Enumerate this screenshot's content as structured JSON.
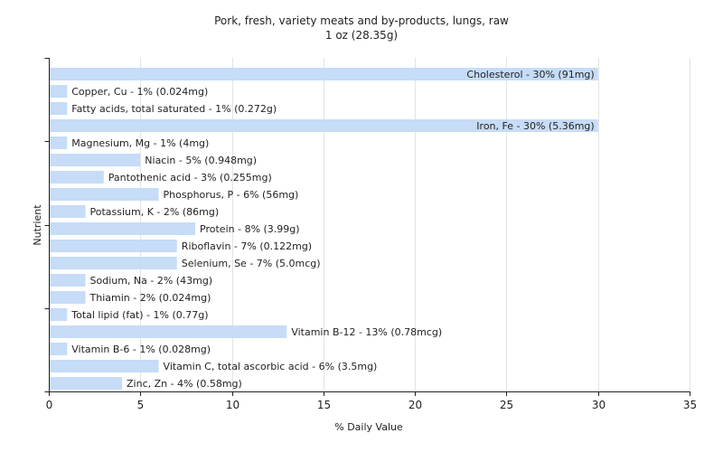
{
  "chart_data": {
    "type": "bar",
    "orientation": "horizontal",
    "title": "Pork, fresh, variety meats and by-products, lungs, raw",
    "subtitle": "1 oz (28.35g)",
    "xlabel": "% Daily Value",
    "ylabel": "Nutrient",
    "xlim": [
      0,
      35
    ],
    "xticks": [
      0,
      5,
      10,
      15,
      20,
      25,
      30,
      35
    ],
    "grid": true,
    "colors": {
      "bar": "#c6dcf7",
      "grid": "#e3e3e3",
      "axis": "#222222"
    },
    "categories": [
      "Cholesterol",
      "Copper, Cu",
      "Fatty acids, total saturated",
      "Iron, Fe",
      "Magnesium, Mg",
      "Niacin",
      "Pantothenic acid",
      "Phosphorus, P",
      "Potassium, K",
      "Protein",
      "Riboflavin",
      "Selenium, Se",
      "Sodium, Na",
      "Thiamin",
      "Total lipid (fat)",
      "Vitamin B-12",
      "Vitamin B-6",
      "Vitamin C, total ascorbic acid",
      "Zinc, Zn"
    ],
    "values": [
      30,
      1,
      1,
      30,
      1,
      5,
      3,
      6,
      2,
      8,
      7,
      7,
      2,
      2,
      1,
      13,
      1,
      6,
      4
    ],
    "labels": [
      "Cholesterol - 30% (91mg)",
      "Copper, Cu - 1% (0.024mg)",
      "Fatty acids, total saturated - 1% (0.272g)",
      "Iron, Fe - 30% (5.36mg)",
      "Magnesium, Mg - 1% (4mg)",
      "Niacin - 5% (0.948mg)",
      "Pantothenic acid - 3% (0.255mg)",
      "Phosphorus, P - 6% (56mg)",
      "Potassium, K - 2% (86mg)",
      "Protein - 8% (3.99g)",
      "Riboflavin - 7% (0.122mg)",
      "Selenium, Se - 7% (5.0mcg)",
      "Sodium, Na - 2% (43mg)",
      "Thiamin - 2% (0.024mg)",
      "Total lipid (fat) - 1% (0.77g)",
      "Vitamin B-12 - 13% (0.78mcg)",
      "Vitamin B-6 - 1% (0.028mg)",
      "Vitamin C, total ascorbic acid - 6% (3.5mg)",
      "Zinc, Zn - 4% (0.58mg)"
    ]
  }
}
